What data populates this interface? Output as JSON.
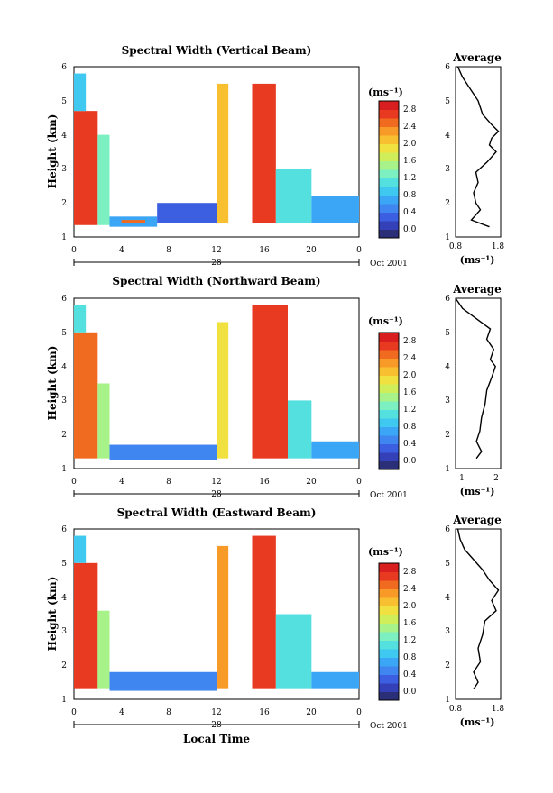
{
  "figure": {
    "time_label": "Local Time",
    "date_day": "28",
    "date_month": "Oct 2001",
    "xticks": [
      "0",
      "4",
      "8",
      "12",
      "16",
      "20",
      "0"
    ],
    "yticks": [
      "1",
      "2",
      "3",
      "4",
      "5",
      "6"
    ],
    "ylabel": "Height (km)",
    "colorbar_unit": "(ms⁻¹)",
    "avg_title": "Average",
    "avg_unit": "(ms⁻¹)",
    "colormap": [
      "#2b2f78",
      "#3440b8",
      "#3b5fe0",
      "#3f86f0",
      "#3ba6f5",
      "#3fc8f0",
      "#55e0e0",
      "#7cf0c0",
      "#a8f28a",
      "#d0ee5a",
      "#f0e040",
      "#f8c030",
      "#f89a28",
      "#f06a20",
      "#e83a20",
      "#d81e1e"
    ]
  },
  "chart_data": [
    {
      "type": "heatmap",
      "title": "Spectral Width (Vertical Beam)",
      "x_range_hours": [
        0,
        24
      ],
      "ylim": [
        1,
        6
      ],
      "colorbar_ticks": [
        "2.8",
        "2.4",
        "2.0",
        "1.6",
        "1.2",
        "0.8",
        "0.4",
        "0.0"
      ],
      "colorbar_range": [
        0.0,
        3.0
      ],
      "cells": [
        {
          "t": [
            0,
            2
          ],
          "h": [
            1.35,
            4.7
          ],
          "v": 2.8
        },
        {
          "t": [
            0,
            1
          ],
          "h": [
            4.7,
            5.8
          ],
          "v": 1.0
        },
        {
          "t": [
            2,
            3
          ],
          "h": [
            1.35,
            4.0
          ],
          "v": 1.4
        },
        {
          "t": [
            3,
            7
          ],
          "h": [
            1.3,
            1.6
          ],
          "v": 0.8
        },
        {
          "t": [
            4,
            6
          ],
          "h": [
            1.4,
            1.5
          ],
          "v": 2.6
        },
        {
          "t": [
            7,
            12
          ],
          "h": [
            1.4,
            2.0
          ],
          "v": 0.5
        },
        {
          "t": [
            12,
            13
          ],
          "h": [
            1.4,
            5.5
          ],
          "v": 2.2
        },
        {
          "t": [
            15,
            17
          ],
          "h": [
            1.4,
            5.5
          ],
          "v": 2.8
        },
        {
          "t": [
            17,
            20
          ],
          "h": [
            1.4,
            3.0
          ],
          "v": 1.2
        },
        {
          "t": [
            20,
            24
          ],
          "h": [
            1.4,
            2.2
          ],
          "v": 0.9
        }
      ],
      "average_profile": {
        "xlim": [
          0.8,
          1.8
        ],
        "xticks": [
          "0.8",
          "1.8"
        ],
        "height_km": [
          1.3,
          1.5,
          1.8,
          2.0,
          2.3,
          2.6,
          2.9,
          3.2,
          3.5,
          3.7,
          3.9,
          4.1,
          4.3,
          4.6,
          5.0,
          5.4,
          5.7,
          6.0
        ],
        "width_ms": [
          1.55,
          1.15,
          1.35,
          1.25,
          1.2,
          1.3,
          1.25,
          1.5,
          1.7,
          1.55,
          1.6,
          1.75,
          1.6,
          1.4,
          1.3,
          1.1,
          0.95,
          0.85
        ]
      }
    },
    {
      "type": "heatmap",
      "title": "Spectral Width (Northward Beam)",
      "x_range_hours": [
        0,
        24
      ],
      "ylim": [
        1,
        6
      ],
      "colorbar_ticks": [
        "2.8",
        "2.4",
        "2.0",
        "1.6",
        "1.2",
        "0.8",
        "0.4",
        "0.0"
      ],
      "colorbar_range": [
        0.0,
        3.0
      ],
      "cells": [
        {
          "t": [
            0,
            2
          ],
          "h": [
            1.3,
            5.0
          ],
          "v": 2.6
        },
        {
          "t": [
            0,
            1
          ],
          "h": [
            5.0,
            5.8
          ],
          "v": 1.2
        },
        {
          "t": [
            2,
            3
          ],
          "h": [
            1.3,
            3.5
          ],
          "v": 1.6
        },
        {
          "t": [
            3,
            12
          ],
          "h": [
            1.25,
            1.7
          ],
          "v": 0.7
        },
        {
          "t": [
            12,
            13
          ],
          "h": [
            1.3,
            5.3
          ],
          "v": 2.0
        },
        {
          "t": [
            15,
            18
          ],
          "h": [
            1.3,
            5.8
          ],
          "v": 2.8
        },
        {
          "t": [
            18,
            20
          ],
          "h": [
            1.3,
            3.0
          ],
          "v": 1.3
        },
        {
          "t": [
            20,
            24
          ],
          "h": [
            1.3,
            1.8
          ],
          "v": 0.8
        }
      ],
      "average_profile": {
        "xlim": [
          0.7,
          2.0
        ],
        "xticks": [
          "1",
          "2"
        ],
        "height_km": [
          1.3,
          1.5,
          1.8,
          2.1,
          2.5,
          2.9,
          3.3,
          3.7,
          4.0,
          4.2,
          4.5,
          4.8,
          5.1,
          5.4,
          5.7,
          6.0
        ],
        "width_ms": [
          1.3,
          1.45,
          1.3,
          1.4,
          1.45,
          1.55,
          1.6,
          1.75,
          1.85,
          1.7,
          1.8,
          1.6,
          1.7,
          1.3,
          0.9,
          0.7
        ]
      }
    },
    {
      "type": "heatmap",
      "title": "Spectral Width (Eastward Beam)",
      "x_range_hours": [
        0,
        24
      ],
      "ylim": [
        1,
        6
      ],
      "colorbar_ticks": [
        "2.8",
        "2.4",
        "2.0",
        "1.6",
        "1.2",
        "0.8",
        "0.4",
        "0.0"
      ],
      "colorbar_range": [
        0.0,
        3.0
      ],
      "cells": [
        {
          "t": [
            0,
            2
          ],
          "h": [
            1.3,
            5.0
          ],
          "v": 2.7
        },
        {
          "t": [
            0,
            1
          ],
          "h": [
            5.0,
            5.8
          ],
          "v": 1.1
        },
        {
          "t": [
            2,
            3
          ],
          "h": [
            1.3,
            3.6
          ],
          "v": 1.5
        },
        {
          "t": [
            3,
            12
          ],
          "h": [
            1.25,
            1.8
          ],
          "v": 0.7
        },
        {
          "t": [
            12,
            13
          ],
          "h": [
            1.3,
            5.5
          ],
          "v": 2.4
        },
        {
          "t": [
            15,
            17
          ],
          "h": [
            1.3,
            5.8
          ],
          "v": 2.8
        },
        {
          "t": [
            17,
            20
          ],
          "h": [
            1.3,
            3.5
          ],
          "v": 1.2
        },
        {
          "t": [
            20,
            24
          ],
          "h": [
            1.3,
            1.8
          ],
          "v": 0.8
        }
      ],
      "average_profile": {
        "xlim": [
          0.8,
          1.8
        ],
        "xticks": [
          "0.8",
          "1.8"
        ],
        "height_km": [
          1.3,
          1.5,
          1.8,
          2.1,
          2.5,
          2.9,
          3.3,
          3.6,
          3.9,
          4.2,
          4.5,
          4.8,
          5.1,
          5.4,
          5.7,
          6.0
        ],
        "width_ms": [
          1.2,
          1.3,
          1.2,
          1.35,
          1.3,
          1.4,
          1.45,
          1.7,
          1.6,
          1.75,
          1.55,
          1.4,
          1.2,
          1.0,
          0.9,
          0.85
        ]
      }
    }
  ]
}
